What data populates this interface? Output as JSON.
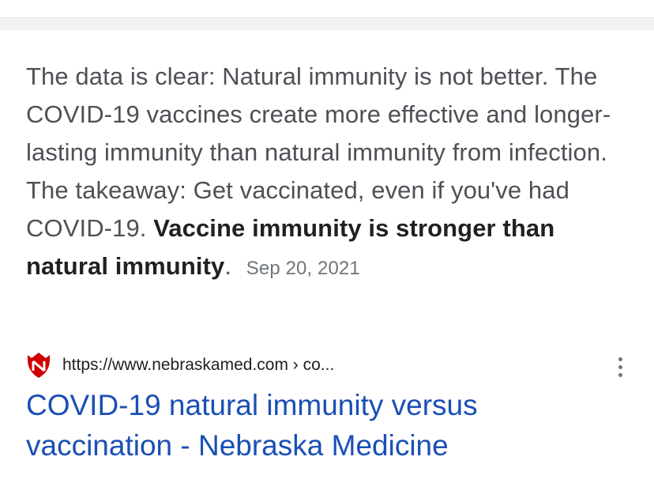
{
  "featured_snippet": {
    "text": "The data is clear: Natural immunity is not better. The COVID-19 vaccines create more effective and longer-lasting immunity than natural immunity from infection. The takeaway: Get vaccinated, even if you've had COVID-19.",
    "bold_text": "Vaccine immunity is stronger than natural immunity",
    "trailing_punctuation": ".",
    "date": "Sep 20, 2021"
  },
  "source": {
    "favicon": "nebraska-medicine-favicon",
    "url": "https://www.nebraskamed.com › co..."
  },
  "result": {
    "title": "COVID-19 natural immunity versus vaccination - Nebraska Medicine"
  },
  "icons": {
    "more_options": "vertical-ellipsis-icon"
  },
  "colors": {
    "snippet_text": "#4d5156",
    "bold_text": "#202124",
    "date_text": "#70757a",
    "link_blue": "#1a4fb5",
    "favicon_red": "#d00000"
  }
}
